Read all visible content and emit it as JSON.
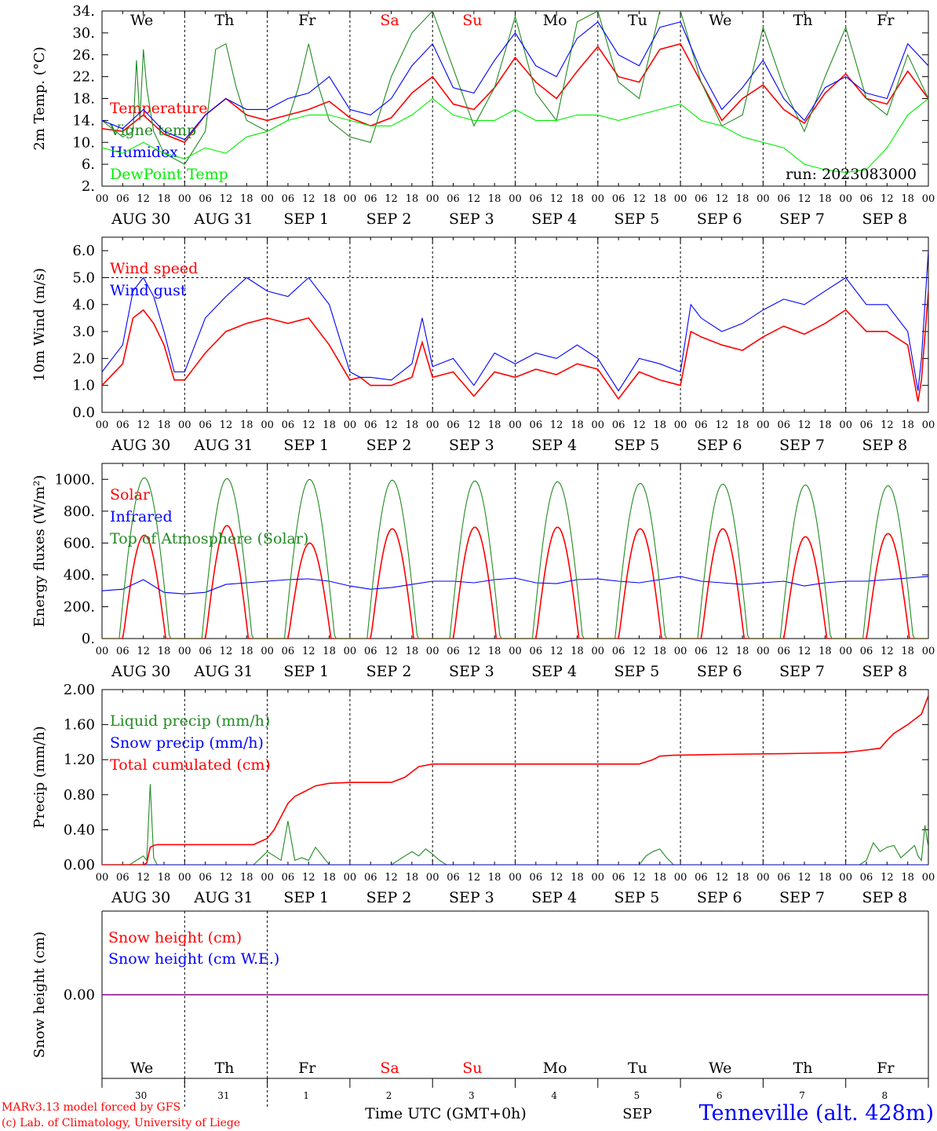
{
  "meta": {
    "run_label": "run: 2023083000",
    "model_line": "MARv3.13 model forced by GFS",
    "lab_line": "(c) Lab. of Climatology, University of Liege",
    "x_axis_title": "Time UTC (GMT+0h)",
    "month_label": "SEP",
    "station": "Tenneville (alt. 428m)"
  },
  "colors": {
    "red": "#ff0000",
    "green": "#228b22",
    "blue": "#0000ff",
    "lightgreen": "#00ee00",
    "purple": "#7f007f",
    "black": "#000000"
  },
  "days": [
    {
      "abbr": "We",
      "weekend": false,
      "date": "AUG 30",
      "num": "30"
    },
    {
      "abbr": "Th",
      "weekend": false,
      "date": "AUG 31",
      "num": "31"
    },
    {
      "abbr": "Fr",
      "weekend": false,
      "date": "SEP  1",
      "num": "1"
    },
    {
      "abbr": "Sa",
      "weekend": true,
      "date": "SEP  2",
      "num": "2"
    },
    {
      "abbr": "Su",
      "weekend": true,
      "date": "SEP  3",
      "num": "3"
    },
    {
      "abbr": "Mo",
      "weekend": false,
      "date": "SEP  4",
      "num": "4"
    },
    {
      "abbr": "Tu",
      "weekend": false,
      "date": "SEP  5",
      "num": "5"
    },
    {
      "abbr": "We",
      "weekend": false,
      "date": "SEP  6",
      "num": "6"
    },
    {
      "abbr": "Th",
      "weekend": false,
      "date": "SEP  7",
      "num": "7"
    },
    {
      "abbr": "Fr",
      "weekend": false,
      "date": "SEP  8",
      "num": "8"
    }
  ],
  "hour_ticks": [
    "00",
    "06",
    "12",
    "18"
  ],
  "chart_data": [
    {
      "id": "temp",
      "type": "line",
      "ylabel": "2m Temp. (°C)",
      "ylim": [
        2,
        34
      ],
      "yticks": [
        "2.",
        "6.",
        "10.",
        "14.",
        "18.",
        "22.",
        "26.",
        "30.",
        "34."
      ],
      "x_unit": "hours since AUG 30 00 UTC",
      "series": [
        {
          "name": "Temperature",
          "color": "red",
          "x": [
            0,
            6,
            12,
            18,
            24,
            30,
            36,
            42,
            48,
            54,
            60,
            66,
            72,
            78,
            84,
            90,
            96,
            102,
            108,
            114,
            120,
            126,
            132,
            138,
            144,
            150,
            156,
            162,
            168,
            174,
            180,
            186,
            192,
            198,
            204,
            210,
            216,
            222,
            228,
            234,
            240
          ],
          "y": [
            12.5,
            12,
            15,
            11.5,
            10,
            15,
            18,
            15,
            14,
            15,
            16,
            17.5,
            14.5,
            13,
            14.5,
            19,
            22,
            17,
            16,
            20,
            25.5,
            21,
            18,
            23,
            27.5,
            22,
            21,
            27,
            28,
            21,
            14,
            18,
            20.5,
            16,
            13.5,
            19,
            22.5,
            18,
            17,
            23,
            18
          ]
        },
        {
          "name": "Vigne temp",
          "color": "green",
          "x": [
            0,
            6,
            9,
            10,
            11,
            12,
            13,
            15,
            18,
            24,
            30,
            33,
            36,
            39,
            42,
            48,
            54,
            57,
            60,
            63,
            66,
            72,
            78,
            84,
            90,
            96,
            100,
            108,
            114,
            120,
            126,
            132,
            138,
            144,
            150,
            156,
            162,
            168,
            174,
            180,
            186,
            192,
            198,
            204,
            210,
            216,
            222,
            228,
            234,
            240
          ],
          "y": [
            14,
            11,
            12,
            25,
            14,
            27,
            20,
            12,
            8,
            6,
            12,
            27,
            28,
            20,
            14,
            12,
            14,
            20,
            28,
            20,
            14,
            11,
            10,
            22,
            30,
            34,
            27,
            13,
            20,
            33,
            19,
            14,
            32,
            34,
            21,
            18,
            34,
            34,
            21,
            13,
            15,
            31,
            20,
            12,
            22,
            31,
            18,
            15,
            26,
            18
          ]
        },
        {
          "name": "Humidex",
          "color": "blue",
          "x": [
            0,
            6,
            12,
            18,
            24,
            30,
            36,
            42,
            48,
            54,
            60,
            66,
            72,
            78,
            84,
            90,
            96,
            102,
            108,
            114,
            120,
            126,
            132,
            138,
            144,
            150,
            156,
            162,
            168,
            174,
            180,
            186,
            192,
            198,
            204,
            210,
            216,
            222,
            228,
            234,
            240
          ],
          "y": [
            14,
            12.5,
            16,
            12,
            10.5,
            15,
            18,
            16,
            16,
            18,
            19,
            22,
            16,
            15,
            18,
            24,
            28,
            20,
            19,
            25,
            30,
            24,
            22,
            29,
            32,
            26,
            24,
            31,
            32,
            23,
            16,
            20,
            25,
            18,
            14,
            20,
            22,
            19,
            18,
            28,
            24
          ]
        },
        {
          "name": "DewPoint Temp",
          "color": "lightgreen",
          "x": [
            0,
            6,
            12,
            18,
            24,
            30,
            36,
            42,
            48,
            54,
            60,
            66,
            72,
            78,
            84,
            90,
            96,
            102,
            108,
            114,
            120,
            126,
            132,
            138,
            144,
            150,
            156,
            162,
            168,
            174,
            180,
            186,
            192,
            198,
            204,
            210,
            216,
            222,
            228,
            234,
            240
          ],
          "y": [
            9,
            8,
            10,
            8,
            7,
            9,
            8,
            11,
            12,
            14,
            15,
            15,
            14,
            13,
            13,
            15,
            18,
            15,
            14,
            14,
            16,
            14,
            14,
            15,
            15,
            14,
            15,
            16,
            17,
            14,
            13,
            11,
            10,
            9,
            6,
            5,
            4.5,
            5,
            9,
            15,
            18
          ]
        }
      ]
    },
    {
      "id": "wind",
      "type": "line",
      "ylabel": "10m Wind (m/s)",
      "ylim": [
        0,
        6.5
      ],
      "yticks": [
        "0.0",
        "1.0",
        "2.0",
        "3.0",
        "4.0",
        "5.0",
        "6.0"
      ],
      "reference_line": 5.0,
      "series": [
        {
          "name": "Wind speed",
          "color": "red",
          "x": [
            0,
            6,
            9,
            12,
            15,
            18,
            21,
            24,
            30,
            36,
            42,
            48,
            54,
            60,
            66,
            72,
            75,
            78,
            84,
            90,
            93,
            96,
            102,
            108,
            114,
            120,
            126,
            132,
            138,
            144,
            150,
            156,
            162,
            168,
            171,
            174,
            180,
            186,
            192,
            198,
            204,
            210,
            216,
            222,
            228,
            234,
            237,
            238,
            240
          ],
          "y": [
            1.0,
            1.8,
            3.5,
            3.8,
            3.3,
            2.5,
            1.2,
            1.2,
            2.2,
            3.0,
            3.3,
            3.5,
            3.3,
            3.5,
            2.5,
            1.2,
            1.3,
            1.0,
            1.0,
            1.3,
            2.6,
            1.3,
            1.5,
            0.6,
            1.5,
            1.3,
            1.6,
            1.4,
            1.8,
            1.6,
            0.5,
            1.5,
            1.2,
            1.0,
            3.0,
            2.8,
            2.5,
            2.3,
            2.8,
            3.2,
            2.9,
            3.3,
            3.8,
            3.0,
            3.0,
            2.5,
            0.4,
            1.2,
            4.5
          ]
        },
        {
          "name": "Wind gust",
          "color": "blue",
          "x": [
            0,
            6,
            9,
            12,
            15,
            18,
            21,
            24,
            30,
            36,
            42,
            48,
            54,
            60,
            66,
            72,
            75,
            78,
            84,
            90,
            93,
            96,
            102,
            108,
            114,
            120,
            126,
            132,
            138,
            144,
            150,
            156,
            162,
            168,
            171,
            174,
            180,
            186,
            192,
            198,
            204,
            210,
            216,
            222,
            228,
            234,
            237,
            238,
            240
          ],
          "y": [
            1.5,
            2.5,
            4.5,
            5.0,
            4.3,
            3.0,
            1.5,
            1.5,
            3.5,
            4.3,
            5.0,
            4.5,
            4.3,
            5.0,
            4.0,
            1.5,
            1.3,
            1.3,
            1.2,
            1.8,
            3.5,
            1.7,
            2.0,
            1.0,
            2.2,
            1.8,
            2.2,
            2.0,
            2.5,
            2.0,
            0.8,
            2.0,
            1.8,
            1.5,
            4.0,
            3.5,
            3.0,
            3.3,
            3.8,
            4.2,
            4.0,
            4.5,
            5.0,
            4.0,
            4.0,
            3.0,
            0.8,
            2.0,
            6.0
          ]
        }
      ]
    },
    {
      "id": "energy",
      "type": "line",
      "ylabel": "Energy fluxes (W/m²)",
      "ylim": [
        0,
        1100
      ],
      "yticks": [
        "0.",
        "200.",
        "400.",
        "600.",
        "800.",
        "1000."
      ],
      "series": [
        {
          "name": "Solar",
          "color": "red",
          "peaks": [
            650,
            710,
            600,
            690,
            700,
            700,
            690,
            690,
            640,
            660
          ]
        },
        {
          "name": "Infrared",
          "color": "blue",
          "x": [
            0,
            6,
            12,
            18,
            24,
            30,
            36,
            42,
            48,
            54,
            60,
            66,
            72,
            78,
            84,
            90,
            96,
            102,
            108,
            114,
            120,
            126,
            132,
            138,
            144,
            150,
            156,
            162,
            168,
            174,
            180,
            186,
            192,
            198,
            204,
            210,
            216,
            222,
            228,
            234,
            240
          ],
          "y": [
            300,
            310,
            370,
            290,
            280,
            290,
            340,
            350,
            360,
            370,
            375,
            360,
            330,
            310,
            320,
            340,
            360,
            360,
            350,
            370,
            380,
            350,
            345,
            370,
            375,
            360,
            350,
            370,
            390,
            360,
            350,
            340,
            350,
            360,
            330,
            350,
            360,
            360,
            370,
            380,
            390
          ]
        },
        {
          "name": "Top of Atmosphere (Solar)",
          "color": "green",
          "peaks": [
            1010,
            1005,
            1000,
            995,
            990,
            985,
            975,
            970,
            965,
            960
          ]
        }
      ]
    },
    {
      "id": "precip",
      "type": "line",
      "ylabel": "Precip (mm/h)",
      "ylim": [
        0,
        2.0
      ],
      "yticks": [
        "0.00",
        "0.40",
        "0.80",
        "1.20",
        "1.60",
        "2.00"
      ],
      "series": [
        {
          "name": "Liquid precip (mm/h)",
          "color": "green",
          "x": [
            0,
            8,
            10,
            12,
            13,
            14,
            15,
            16,
            18,
            24,
            44,
            48,
            50,
            52,
            54,
            56,
            58,
            60,
            62,
            66,
            84,
            86,
            88,
            90,
            92,
            94,
            96,
            98,
            100,
            156,
            158,
            160,
            162,
            164,
            166,
            206,
            220,
            222,
            224,
            226,
            228,
            230,
            232,
            234,
            236,
            237,
            238,
            239,
            240
          ],
          "y": [
            0,
            0,
            0.05,
            0.1,
            0.05,
            0.92,
            0.08,
            0,
            0,
            0,
            0,
            0.15,
            0.1,
            0.05,
            0.5,
            0.05,
            0.08,
            0.05,
            0.2,
            0,
            0,
            0.05,
            0.1,
            0.15,
            0.1,
            0.18,
            0.12,
            0.05,
            0,
            0,
            0.1,
            0.15,
            0.18,
            0.08,
            0,
            0,
            0,
            0.05,
            0.25,
            0.15,
            0.2,
            0.22,
            0.08,
            0.15,
            0.22,
            0.1,
            0.05,
            0.45,
            0.2
          ]
        },
        {
          "name": "Snow precip (mm/h)",
          "color": "blue",
          "x": [
            0,
            240
          ],
          "y": [
            0,
            0
          ]
        },
        {
          "name": "Total cumulated (cm)",
          "color": "red",
          "x": [
            0,
            12,
            13,
            14,
            15,
            16,
            24,
            44,
            48,
            50,
            52,
            54,
            56,
            58,
            62,
            66,
            72,
            84,
            88,
            92,
            96,
            120,
            150,
            156,
            160,
            162,
            166,
            180,
            200,
            215,
            220,
            224,
            226,
            228,
            230,
            234,
            238,
            240
          ],
          "y": [
            0,
            0,
            0.02,
            0.2,
            0.22,
            0.23,
            0.23,
            0.23,
            0.3,
            0.4,
            0.55,
            0.7,
            0.78,
            0.82,
            0.9,
            0.93,
            0.94,
            0.94,
            1.0,
            1.12,
            1.15,
            1.15,
            1.15,
            1.15,
            1.2,
            1.24,
            1.25,
            1.26,
            1.27,
            1.28,
            1.3,
            1.32,
            1.33,
            1.42,
            1.5,
            1.6,
            1.72,
            1.93
          ]
        }
      ]
    },
    {
      "id": "snow",
      "type": "line",
      "ylabel": "Snow height (cm)",
      "ylim": [
        -1,
        1
      ],
      "yticks": [
        "0.00"
      ],
      "series": [
        {
          "name": "Snow height (cm)",
          "color": "red",
          "x": [
            0,
            240
          ],
          "y": [
            0,
            0
          ]
        },
        {
          "name": "Snow height (cm W.E.)",
          "color": "blue",
          "x": [
            0,
            240
          ],
          "y": [
            0,
            0
          ]
        }
      ]
    }
  ]
}
